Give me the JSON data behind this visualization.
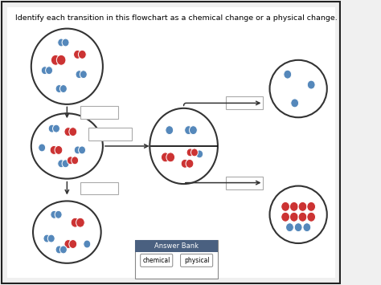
{
  "title": "Identify each transition in this flowchart as a chemical change or a physical change.",
  "title_fontsize": 6.8,
  "bg_color": "#f0f0f0",
  "inner_bg": "#ffffff",
  "border_color": "#333333",
  "answer_bank_bg": "#4a6080",
  "answer_bank_text_color": "#ffffff",
  "answer_bank_title": "Answer Bank",
  "btn_chemical": "chemical",
  "btn_physical": "physical",
  "blue_color": "#5588bb",
  "red_color": "#cc3333",
  "arrow_color": "#333333",
  "box_color": "#aaaaaa",
  "outer_border": "#222222",
  "circle_lw": 1.3,
  "ellipse_lw": 1.5
}
